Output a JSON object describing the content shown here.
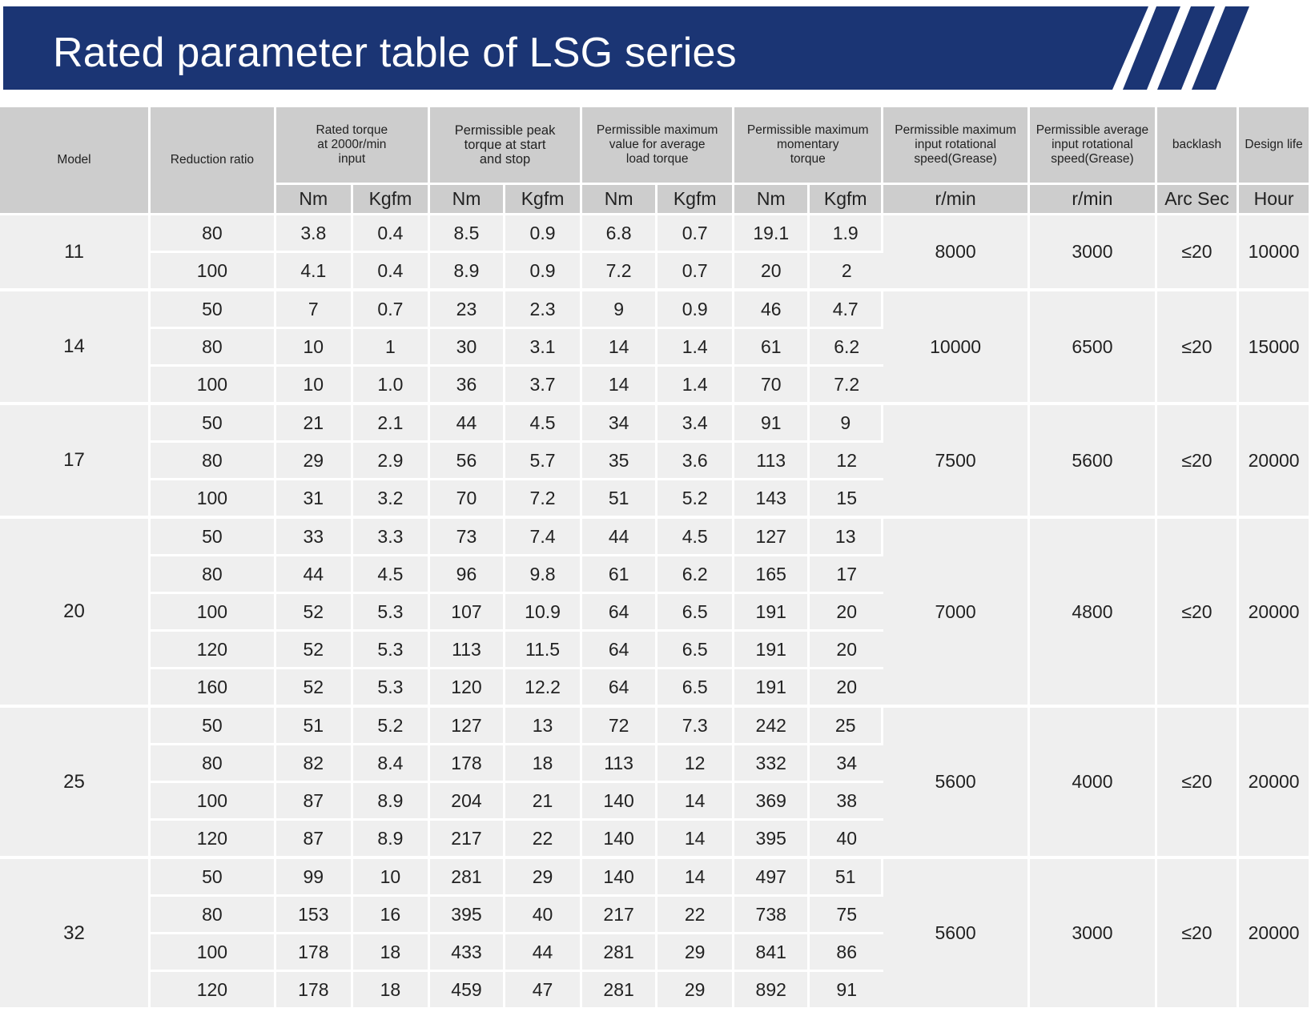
{
  "title": "Rated parameter table of LSG series",
  "colors": {
    "banner": "#1b3574",
    "header_bg": "#cdcdcd",
    "cell_bg": "#efefef"
  },
  "headers": {
    "model": "Model",
    "ratio": "Reduction ratio",
    "rated_torque": [
      "Rated torque",
      "at 2000r/min",
      "input"
    ],
    "peak_torque": [
      "Permissible peak",
      "torque at start",
      "and stop"
    ],
    "avg_load_torque": [
      "Permissible maximum",
      "value for average",
      "load torque"
    ],
    "momentary_torque": [
      "Permissible maximum",
      "momentary",
      "torque"
    ],
    "max_input_speed": [
      "Permissible maximum",
      "input rotational",
      "speed(Grease)"
    ],
    "avg_input_speed": [
      "Permissible average",
      "input rotational",
      "speed(Grease)"
    ],
    "backlash": "backlash",
    "design_life": "Design life"
  },
  "units": {
    "nm": "Nm",
    "kgfm": "Kgfm",
    "rmin_max": "r/min",
    "rmin_avg": "r/min",
    "arcsec": "Arc Sec",
    "hour": "Hour"
  },
  "groups": [
    {
      "model": "11",
      "max_speed": "8000",
      "avg_speed": "3000",
      "backlash": "≤20",
      "life": "10000",
      "rows": [
        [
          "80",
          "3.8",
          "0.4",
          "8.5",
          "0.9",
          "6.8",
          "0.7",
          "19.1",
          "1.9"
        ],
        [
          "100",
          "4.1",
          "0.4",
          "8.9",
          "0.9",
          "7.2",
          "0.7",
          "20",
          "2"
        ]
      ]
    },
    {
      "model": "14",
      "max_speed": "10000",
      "avg_speed": "6500",
      "backlash": "≤20",
      "life": "15000",
      "rows": [
        [
          "50",
          "7",
          "0.7",
          "23",
          "2.3",
          "9",
          "0.9",
          "46",
          "4.7"
        ],
        [
          "80",
          "10",
          "1",
          "30",
          "3.1",
          "14",
          "1.4",
          "61",
          "6.2"
        ],
        [
          "100",
          "10",
          "1.0",
          "36",
          "3.7",
          "14",
          "1.4",
          "70",
          "7.2"
        ]
      ]
    },
    {
      "model": "17",
      "max_speed": "7500",
      "avg_speed": "5600",
      "backlash": "≤20",
      "life": "20000",
      "rows": [
        [
          "50",
          "21",
          "2.1",
          "44",
          "4.5",
          "34",
          "3.4",
          "91",
          "9"
        ],
        [
          "80",
          "29",
          "2.9",
          "56",
          "5.7",
          "35",
          "3.6",
          "113",
          "12"
        ],
        [
          "100",
          "31",
          "3.2",
          "70",
          "7.2",
          "51",
          "5.2",
          "143",
          "15"
        ]
      ]
    },
    {
      "model": "20",
      "max_speed": "7000",
      "avg_speed": "4800",
      "backlash": "≤20",
      "life": "20000",
      "rows": [
        [
          "50",
          "33",
          "3.3",
          "73",
          "7.4",
          "44",
          "4.5",
          "127",
          "13"
        ],
        [
          "80",
          "44",
          "4.5",
          "96",
          "9.8",
          "61",
          "6.2",
          "165",
          "17"
        ],
        [
          "100",
          "52",
          "5.3",
          "107",
          "10.9",
          "64",
          "6.5",
          "191",
          "20"
        ],
        [
          "120",
          "52",
          "5.3",
          "113",
          "11.5",
          "64",
          "6.5",
          "191",
          "20"
        ],
        [
          "160",
          "52",
          "5.3",
          "120",
          "12.2",
          "64",
          "6.5",
          "191",
          "20"
        ]
      ]
    },
    {
      "model": "25",
      "max_speed": "5600",
      "avg_speed": "4000",
      "backlash": "≤20",
      "life": "20000",
      "rows": [
        [
          "50",
          "51",
          "5.2",
          "127",
          "13",
          "72",
          "7.3",
          "242",
          "25"
        ],
        [
          "80",
          "82",
          "8.4",
          "178",
          "18",
          "113",
          "12",
          "332",
          "34"
        ],
        [
          "100",
          "87",
          "8.9",
          "204",
          "21",
          "140",
          "14",
          "369",
          "38"
        ],
        [
          "120",
          "87",
          "8.9",
          "217",
          "22",
          "140",
          "14",
          "395",
          "40"
        ]
      ]
    },
    {
      "model": "32",
      "max_speed": "5600",
      "avg_speed": "3000",
      "backlash": "≤20",
      "life": "20000",
      "rows": [
        [
          "50",
          "99",
          "10",
          "281",
          "29",
          "140",
          "14",
          "497",
          "51"
        ],
        [
          "80",
          "153",
          "16",
          "395",
          "40",
          "217",
          "22",
          "738",
          "75"
        ],
        [
          "100",
          "178",
          "18",
          "433",
          "44",
          "281",
          "29",
          "841",
          "86"
        ],
        [
          "120",
          "178",
          "18",
          "459",
          "47",
          "281",
          "29",
          "892",
          "91"
        ]
      ]
    }
  ]
}
